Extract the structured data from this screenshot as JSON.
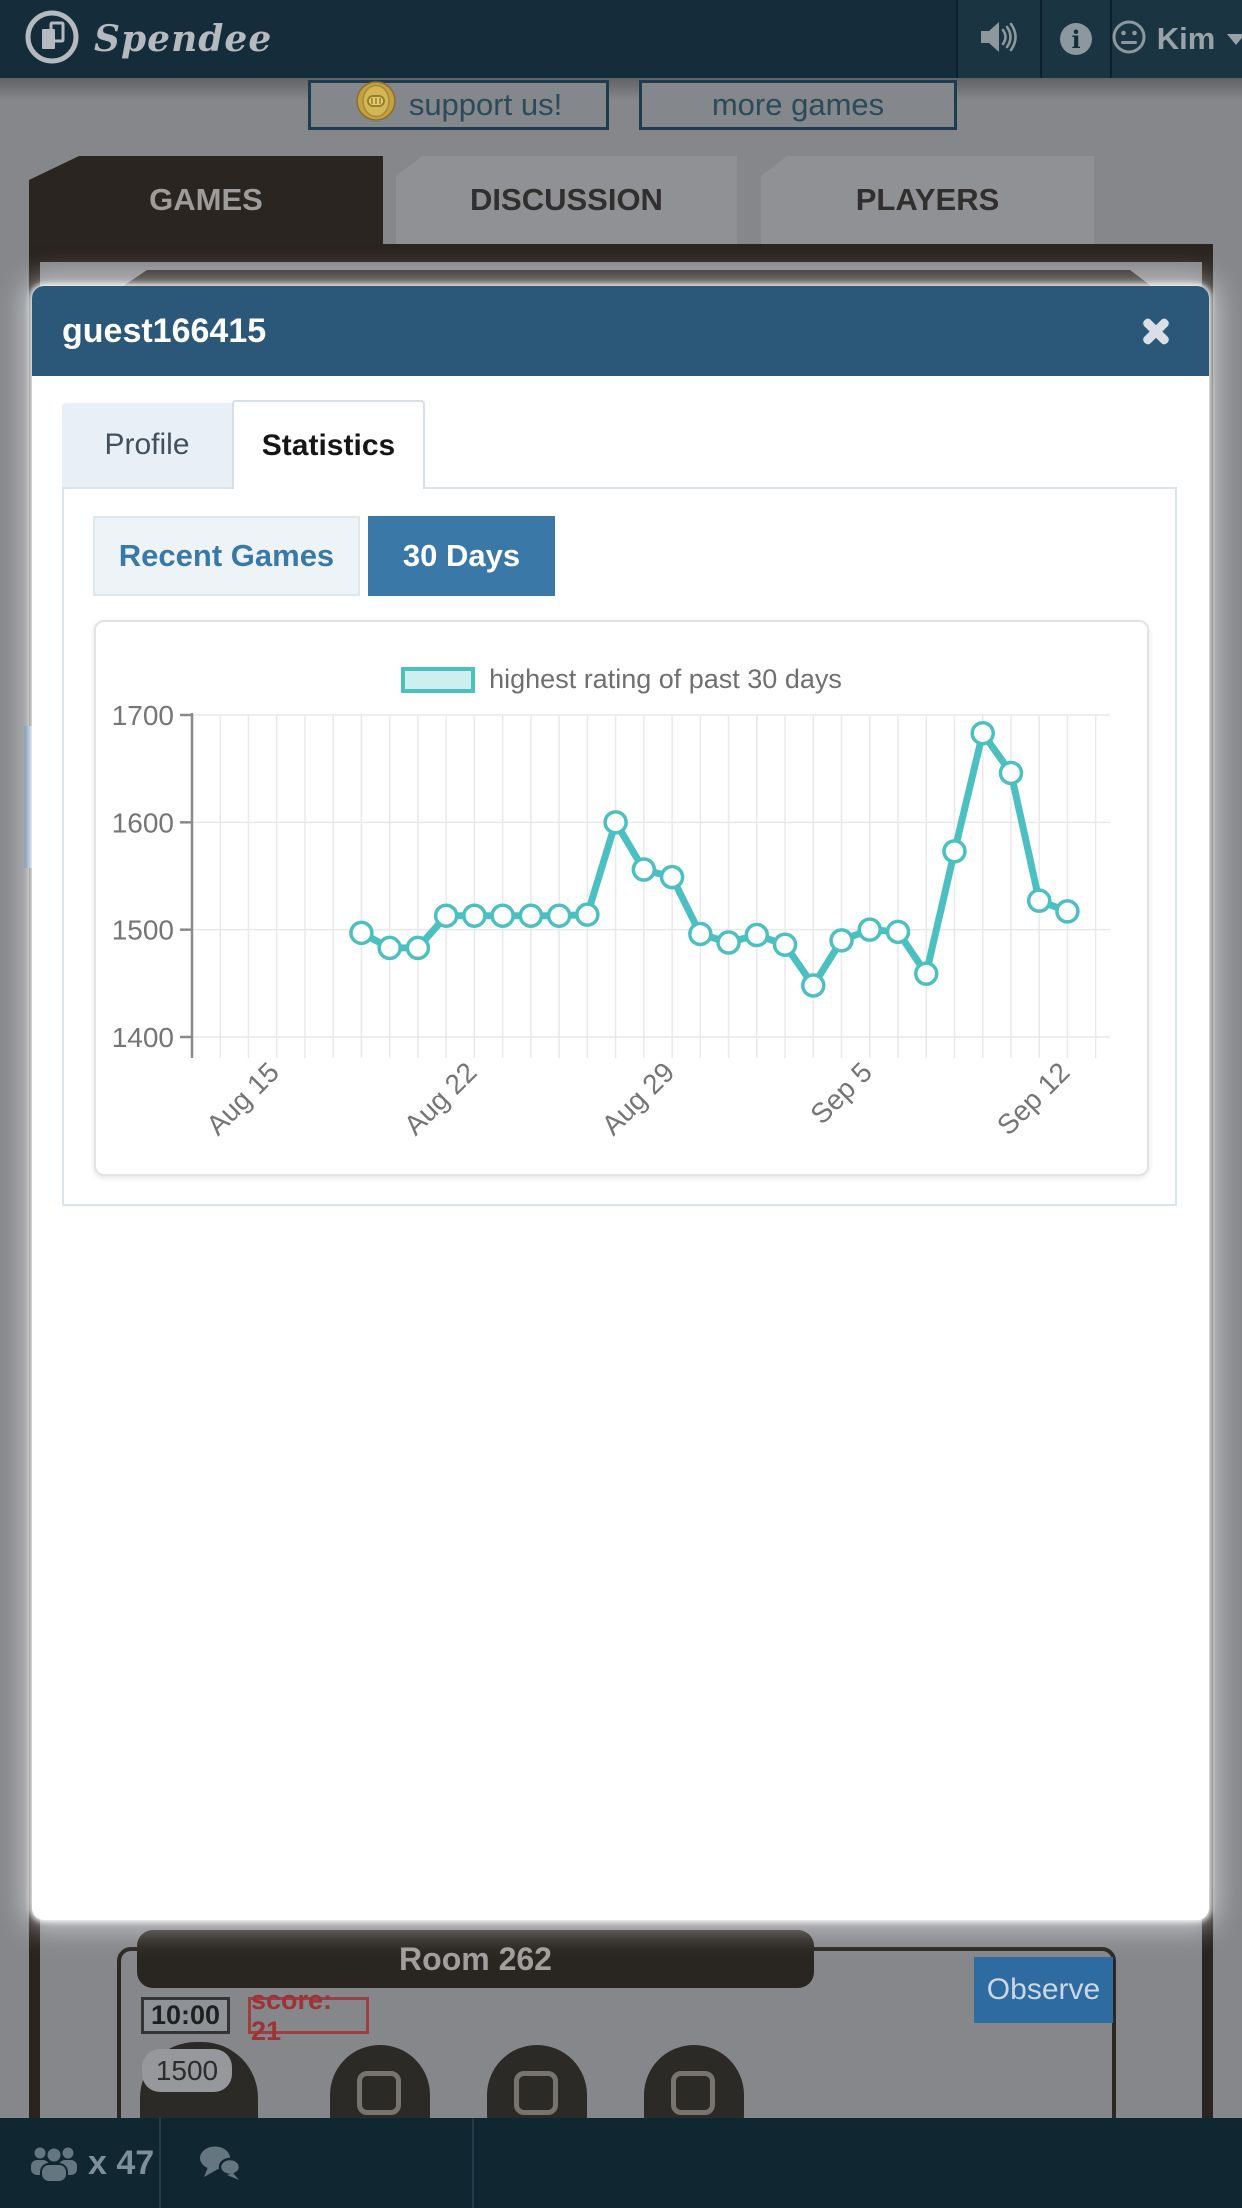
{
  "header": {
    "app_name": "Spendee",
    "user_name": "Kim"
  },
  "toolbar": {
    "support_label": "support us!",
    "more_games_label": "more games"
  },
  "page_tabs": [
    {
      "label": "GAMES",
      "active": true
    },
    {
      "label": "DISCUSSION",
      "active": false
    },
    {
      "label": "PLAYERS",
      "active": false
    }
  ],
  "modal": {
    "title": "guest166415",
    "tabs": [
      {
        "label": "Profile",
        "active": false
      },
      {
        "label": "Statistics",
        "active": true
      }
    ],
    "range_toggle": [
      {
        "label": "Recent Games",
        "active": false
      },
      {
        "label": "30 Days",
        "active": true
      }
    ]
  },
  "chart_data": {
    "type": "line",
    "title": "",
    "legend": "highest rating of past 30 days",
    "x": [
      "Aug 18",
      "Aug 19",
      "Aug 20",
      "Aug 21",
      "Aug 22",
      "Aug 23",
      "Aug 24",
      "Aug 25",
      "Aug 26",
      "Aug 27",
      "Aug 28",
      "Aug 29",
      "Aug 30",
      "Aug 31",
      "Sep 1",
      "Sep 2",
      "Sep 3",
      "Sep 4",
      "Sep 5",
      "Sep 6",
      "Sep 7",
      "Sep 8",
      "Sep 9",
      "Sep 10",
      "Sep 11",
      "Sep 12"
    ],
    "values": [
      1497,
      1483,
      1483,
      1513,
      1513,
      1513,
      1513,
      1513,
      1514,
      1600,
      1556,
      1549,
      1496,
      1488,
      1495,
      1486,
      1448,
      1490,
      1500,
      1498,
      1459,
      1573,
      1683,
      1646,
      1527,
      1517
    ],
    "start_day_offset": 6,
    "grid_days": 32,
    "xticks": [
      {
        "label": "Aug 15",
        "offset": 3
      },
      {
        "label": "Aug 22",
        "offset": 10
      },
      {
        "label": "Aug 29",
        "offset": 17
      },
      {
        "label": "Sep 5",
        "offset": 24
      },
      {
        "label": "Sep 12",
        "offset": 31
      }
    ],
    "yticks": [
      1400,
      1500,
      1600,
      1700
    ],
    "ylim": [
      1400,
      1700
    ],
    "grid": true,
    "legend_position": "top",
    "line_color": "#4cc0c0",
    "point_fill": "#ffffff",
    "grid_color": "#e9e9e9",
    "axis_color": "#8a8a8a",
    "label_color": "#757575"
  },
  "room": {
    "title": "Room 262",
    "observe_label": "Observe",
    "timer": "10:00",
    "score": "score: 21",
    "rating": "1500"
  },
  "bottom_bar": {
    "online_count": "x 47"
  },
  "colors": {
    "accent_blue": "#3a79a7",
    "modal_header_blue": "#2b5779",
    "header_navy": "#152c3a",
    "line_teal": "#4cc0c0",
    "score_red": "#9c3336"
  }
}
